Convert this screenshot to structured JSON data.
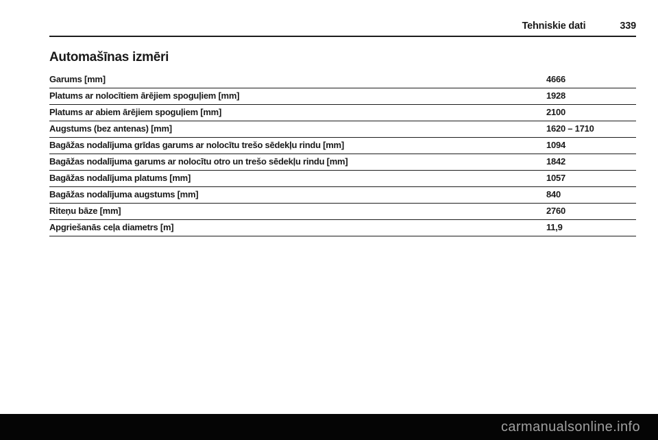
{
  "header": {
    "section_title": "Tehniskie dati",
    "page_number": "339"
  },
  "content": {
    "title": "Automašīnas izmēri"
  },
  "table": {
    "rows": [
      {
        "label": "Garums [mm]",
        "value": "4666"
      },
      {
        "label": "Platums ar nolocītiem ārējiem spoguļiem [mm]",
        "value": "1928"
      },
      {
        "label": "Platums ar abiem ārējiem spoguļiem [mm]",
        "value": "2100"
      },
      {
        "label": "Augstums (bez antenas) [mm]",
        "value": "1620 – 1710"
      },
      {
        "label": "Bagāžas nodalījuma grīdas garums ar nolocītu trešo sēdekļu rindu [mm]",
        "value": "1094"
      },
      {
        "label": "Bagāžas nodalījuma garums ar nolocītu otro un trešo sēdekļu rindu [mm]",
        "value": "1842"
      },
      {
        "label": "Bagāžas nodalījuma platums [mm]",
        "value": "1057"
      },
      {
        "label": "Bagāžas nodalījuma augstums [mm]",
        "value": "840"
      },
      {
        "label": "Riteņu bāze [mm]",
        "value": "2760"
      },
      {
        "label": "Apgriešanās ceļa diametrs [m]",
        "value": "11,9"
      }
    ]
  },
  "footer": {
    "watermark": "carmanualsonline.info"
  },
  "colors": {
    "text": "#1a1a1a",
    "rule": "#1a1a1a",
    "page_background": "#ffffff",
    "footer_background": "#050505",
    "watermark_text": "#a0a0a0"
  }
}
